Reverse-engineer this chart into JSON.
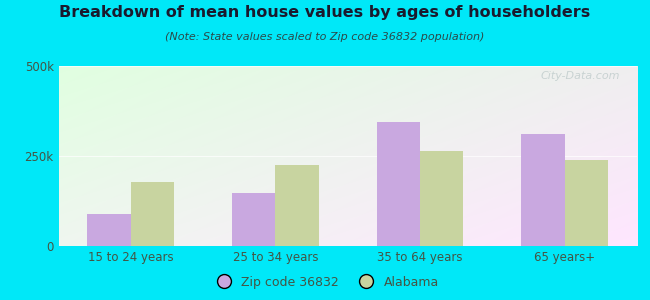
{
  "title": "Breakdown of mean house values by ages of householders",
  "subtitle": "(Note: State values scaled to Zip code 36832 population)",
  "categories": [
    "15 to 24 years",
    "25 to 34 years",
    "35 to 64 years",
    "65 years+"
  ],
  "zip_values": [
    90000,
    148000,
    345000,
    310000
  ],
  "state_values": [
    178000,
    225000,
    265000,
    240000
  ],
  "zip_color": "#c9a8e0",
  "state_color": "#c8d4a0",
  "background_outer": "#00e8f8",
  "ylim": [
    0,
    500000
  ],
  "ytick_labels": [
    "0",
    "250k",
    "500k"
  ],
  "ytick_values": [
    0,
    250000,
    500000
  ],
  "legend_zip_label": "Zip code 36832",
  "legend_state_label": "Alabama",
  "watermark": "City-Data.com",
  "title_color": "#1a1a2e",
  "subtitle_color": "#2a4a4a",
  "tick_color": "#445544"
}
